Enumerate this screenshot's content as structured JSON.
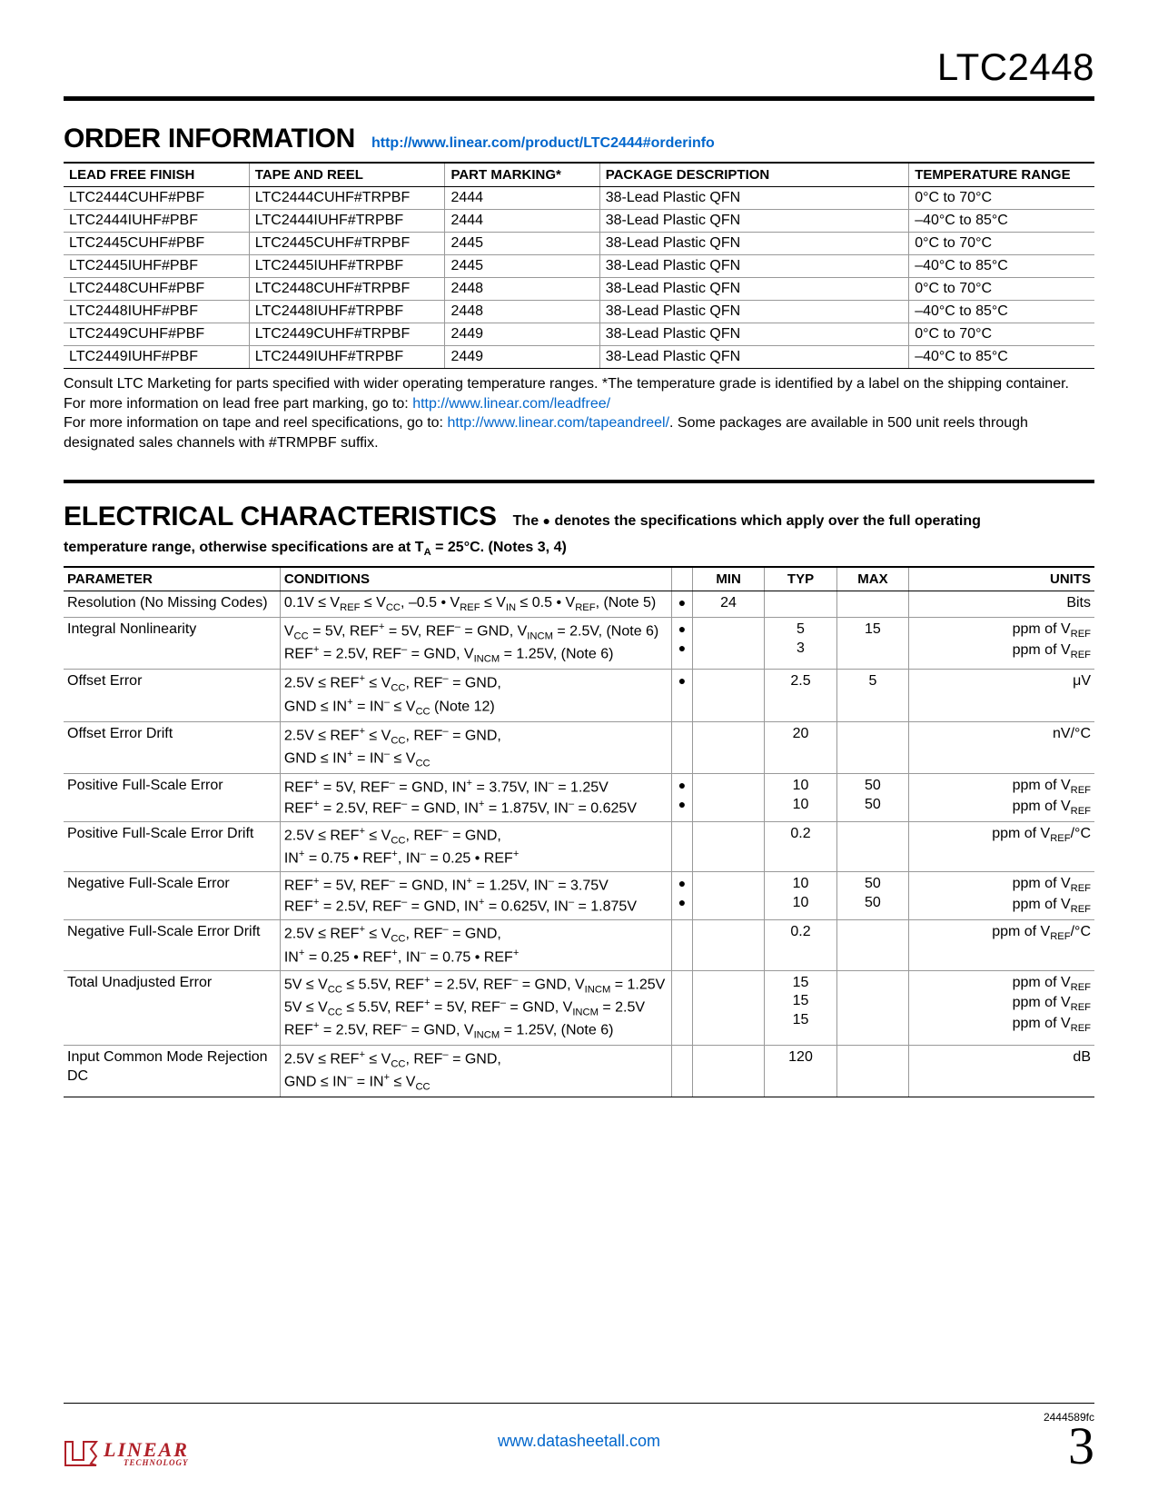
{
  "part_number": "LTC2448",
  "order_info": {
    "heading": "ORDER INFORMATION",
    "url": "http://www.linear.com/product/LTC2444#orderinfo",
    "columns": [
      "LEAD FREE FINISH",
      "TAPE AND REEL",
      "PART MARKING*",
      "PACKAGE DESCRIPTION",
      "TEMPERATURE RANGE"
    ],
    "col_widths": [
      "18%",
      "19%",
      "15%",
      "30%",
      "18%"
    ],
    "rows": [
      [
        "LTC2444CUHF#PBF",
        "LTC2444CUHF#TRPBF",
        "2444",
        "38-Lead Plastic QFN",
        "0°C to 70°C"
      ],
      [
        "LTC2444IUHF#PBF",
        "LTC2444IUHF#TRPBF",
        "2444",
        "38-Lead Plastic QFN",
        "–40°C to 85°C"
      ],
      [
        "LTC2445CUHF#PBF",
        "LTC2445CUHF#TRPBF",
        "2445",
        "38-Lead Plastic QFN",
        "0°C to 70°C"
      ],
      [
        "LTC2445IUHF#PBF",
        "LTC2445IUHF#TRPBF",
        "2445",
        "38-Lead Plastic QFN",
        "–40°C to 85°C"
      ],
      [
        "LTC2448CUHF#PBF",
        "LTC2448CUHF#TRPBF",
        "2448",
        "38-Lead Plastic QFN",
        "0°C to 70°C"
      ],
      [
        "LTC2448IUHF#PBF",
        "LTC2448IUHF#TRPBF",
        "2448",
        "38-Lead Plastic QFN",
        "–40°C to 85°C"
      ],
      [
        "LTC2449CUHF#PBF",
        "LTC2449CUHF#TRPBF",
        "2449",
        "38-Lead Plastic QFN",
        "0°C to 70°C"
      ],
      [
        "LTC2449IUHF#PBF",
        "LTC2449IUHF#TRPBF",
        "2449",
        "38-Lead Plastic QFN",
        "–40°C to 85°C"
      ]
    ],
    "note1": "Consult LTC Marketing for parts specified with wider operating temperature ranges. *The temperature grade is identified by a label on the shipping container.",
    "note2_pre": "For more information on lead free part marking, go to: ",
    "note2_link": "http://www.linear.com/leadfree/",
    "note3_pre": "For more information on tape and reel specifications, go to: ",
    "note3_link": "http://www.linear.com/tapeandreel/",
    "note3_post": ". Some packages are available in 500 unit reels through designated sales channels with #TRMPBF suffix."
  },
  "electrical": {
    "heading": "ELECTRICAL CHARACTERISTICS",
    "subhead_html": "The ● denotes the specifications which apply over the full operating temperature range, otherwise specifications are at T<sub>A</sub> = 25°C. (Notes 3, 4)",
    "columns": [
      "PARAMETER",
      "CONDITIONS",
      "",
      "MIN",
      "TYP",
      "MAX",
      "UNITS"
    ],
    "col_widths": [
      "21%",
      "38%",
      "2%",
      "7%",
      "7%",
      "7%",
      "18%"
    ],
    "rows": [
      {
        "param": "Resolution (No Missing Codes)",
        "cond_html": "0.1V ≤ V<sub>REF</sub> ≤ V<sub>CC</sub>, –0.5 • V<sub>REF</sub> ≤ V<sub>IN</sub> ≤ 0.5 • V<sub>REF</sub>, (Note 5)",
        "dots": [
          "●"
        ],
        "min": [
          "24"
        ],
        "typ": [
          ""
        ],
        "max": [
          ""
        ],
        "units": [
          "Bits"
        ]
      },
      {
        "param": "Integral Nonlinearity",
        "cond_html": "V<sub>CC</sub> = 5V, REF<sup>+</sup> = 5V, REF<sup>–</sup> = GND, V<sub>INCM</sub> = 2.5V, (Note 6)<br>REF<sup>+</sup> = 2.5V, REF<sup>–</sup> = GND, V<sub>INCM</sub> = 1.25V, (Note 6)",
        "dots": [
          "●",
          "●"
        ],
        "min": [
          "",
          ""
        ],
        "typ": [
          "5",
          "3"
        ],
        "max": [
          "15",
          ""
        ],
        "units": [
          "ppm of V<sub>REF</sub>",
          "ppm of V<sub>REF</sub>"
        ]
      },
      {
        "param": "Offset Error",
        "cond_html": "2.5V ≤ REF<sup>+</sup> ≤ V<sub>CC</sub>, REF<sup>–</sup> = GND,<br>GND ≤ IN<sup>+</sup> = IN<sup>–</sup> ≤ V<sub>CC</sub> (Note 12)",
        "dots": [
          "●"
        ],
        "min": [
          ""
        ],
        "typ": [
          "2.5"
        ],
        "max": [
          "5"
        ],
        "units": [
          "μV"
        ]
      },
      {
        "param": "Offset Error Drift",
        "cond_html": "2.5V ≤ REF<sup>+</sup> ≤ V<sub>CC</sub>, REF<sup>–</sup> = GND,<br>GND ≤ IN<sup>+</sup> = IN<sup>–</sup> ≤ V<sub>CC</sub>",
        "dots": [
          ""
        ],
        "min": [
          ""
        ],
        "typ": [
          "20"
        ],
        "max": [
          ""
        ],
        "units": [
          "nV/°C"
        ]
      },
      {
        "param": "Positive Full-Scale Error",
        "cond_html": "REF<sup>+</sup> = 5V, REF<sup>–</sup> = GND, IN<sup>+</sup> = 3.75V, IN<sup>–</sup> = 1.25V<br>REF<sup>+</sup> = 2.5V, REF<sup>–</sup> = GND, IN<sup>+</sup> = 1.875V, IN<sup>–</sup> = 0.625V",
        "dots": [
          "●",
          "●"
        ],
        "min": [
          "",
          ""
        ],
        "typ": [
          "10",
          "10"
        ],
        "max": [
          "50",
          "50"
        ],
        "units": [
          "ppm of V<sub>REF</sub>",
          "ppm of V<sub>REF</sub>"
        ]
      },
      {
        "param": "Positive Full-Scale Error Drift",
        "cond_html": "2.5V ≤ REF<sup>+</sup> ≤ V<sub>CC</sub>, REF<sup>–</sup> = GND,<br>IN<sup>+</sup> = 0.75 • REF<sup>+</sup>, IN<sup>–</sup> = 0.25 • REF<sup>+</sup>",
        "dots": [
          ""
        ],
        "min": [
          ""
        ],
        "typ": [
          "0.2"
        ],
        "max": [
          ""
        ],
        "units": [
          "ppm of V<sub>REF</sub>/°C"
        ]
      },
      {
        "param": "Negative Full-Scale Error",
        "cond_html": "REF<sup>+</sup> = 5V, REF<sup>–</sup> = GND, IN<sup>+</sup> = 1.25V, IN<sup>–</sup> = 3.75V<br>REF<sup>+</sup> = 2.5V, REF<sup>–</sup> = GND, IN<sup>+</sup> = 0.625V, IN<sup>–</sup> = 1.875V",
        "dots": [
          "●",
          "●"
        ],
        "min": [
          "",
          ""
        ],
        "typ": [
          "10",
          "10"
        ],
        "max": [
          "50",
          "50"
        ],
        "units": [
          "ppm of V<sub>REF</sub>",
          "ppm of V<sub>REF</sub>"
        ]
      },
      {
        "param": "Negative Full-Scale Error Drift",
        "cond_html": "2.5V ≤ REF<sup>+</sup> ≤ V<sub>CC</sub>, REF<sup>–</sup> = GND,<br>IN<sup>+</sup> = 0.25 • REF<sup>+</sup>, IN<sup>–</sup> = 0.75 • REF<sup>+</sup>",
        "dots": [
          ""
        ],
        "min": [
          ""
        ],
        "typ": [
          "0.2"
        ],
        "max": [
          ""
        ],
        "units": [
          "ppm of V<sub>REF</sub>/°C"
        ]
      },
      {
        "param": "Total Unadjusted Error",
        "cond_html": "5V ≤ V<sub>CC</sub> ≤ 5.5V, REF<sup>+</sup> = 2.5V, REF<sup>–</sup> = GND, V<sub>INCM</sub> = 1.25V<br>5V ≤ V<sub>CC</sub> ≤ 5.5V, REF<sup>+</sup> = 5V, REF<sup>–</sup> = GND, V<sub>INCM</sub> = 2.5V<br>REF<sup>+</sup> = 2.5V, REF<sup>–</sup> = GND, V<sub>INCM</sub> = 1.25V, (Note 6)",
        "dots": [
          "",
          "",
          ""
        ],
        "min": [
          "",
          "",
          ""
        ],
        "typ": [
          "15",
          "15",
          "15"
        ],
        "max": [
          "",
          "",
          ""
        ],
        "units": [
          "ppm of V<sub>REF</sub>",
          "ppm of V<sub>REF</sub>",
          "ppm of V<sub>REF</sub>"
        ]
      },
      {
        "param": "Input Common Mode Rejection DC",
        "cond_html": "2.5V ≤ REF<sup>+</sup> ≤ V<sub>CC</sub>, REF<sup>–</sup> = GND,<br>GND ≤ IN<sup>–</sup> = IN<sup>+</sup> ≤ V<sub>CC</sub>",
        "dots": [
          ""
        ],
        "min": [
          ""
        ],
        "typ": [
          "120"
        ],
        "max": [
          ""
        ],
        "units": [
          "dB"
        ]
      }
    ]
  },
  "footer": {
    "logo_main": "LINEAR",
    "logo_sub": "TECHNOLOGY",
    "center_link": "www.datasheetall.com",
    "doc_rev": "2444589fc",
    "page_num": "3"
  },
  "colors": {
    "link": "#0066cc",
    "logo": "#b02028",
    "text": "#000000",
    "rule_light": "#999999"
  }
}
